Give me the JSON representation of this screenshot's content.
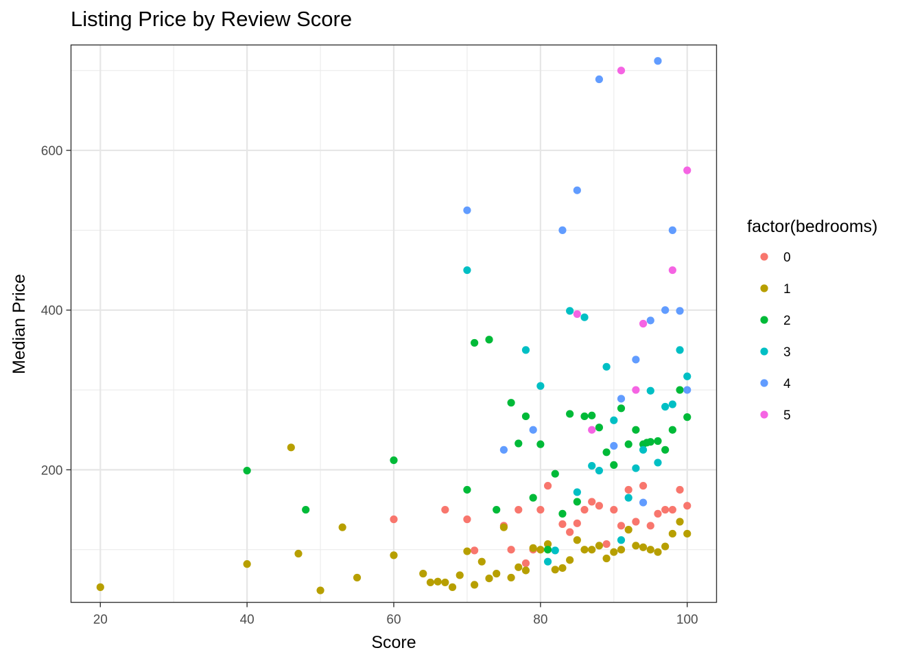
{
  "chart_data": {
    "type": "scatter",
    "title": "Listing Price by Review Score",
    "xlabel": "Score",
    "ylabel": "Median Price",
    "xlim": [
      16,
      104
    ],
    "ylim": [
      34,
      732
    ],
    "x_ticks": [
      20,
      40,
      60,
      80,
      100
    ],
    "x_minor": [
      30,
      50,
      70,
      90
    ],
    "y_ticks": [
      200,
      400,
      600
    ],
    "y_minor": [
      100,
      300,
      500,
      700
    ],
    "grid": true,
    "legend": {
      "title": "factor(bedrooms)",
      "placement": "right"
    },
    "series": [
      {
        "name": "0",
        "color": "#F8766D",
        "points": [
          [
            60,
            138
          ],
          [
            67,
            150
          ],
          [
            70,
            138
          ],
          [
            71,
            99
          ],
          [
            75,
            130
          ],
          [
            76,
            100
          ],
          [
            77,
            150
          ],
          [
            78,
            83
          ],
          [
            79,
            100
          ],
          [
            80,
            150
          ],
          [
            81,
            180
          ],
          [
            83,
            132
          ],
          [
            84,
            122
          ],
          [
            85,
            133
          ],
          [
            86,
            150
          ],
          [
            87,
            160
          ],
          [
            88,
            155
          ],
          [
            89,
            107
          ],
          [
            90,
            150
          ],
          [
            91,
            130
          ],
          [
            92,
            175
          ],
          [
            93,
            135
          ],
          [
            94,
            180
          ],
          [
            95,
            130
          ],
          [
            96,
            145
          ],
          [
            97,
            150
          ],
          [
            98,
            150
          ],
          [
            99,
            175
          ],
          [
            100,
            155
          ]
        ]
      },
      {
        "name": "1",
        "color": "#B79F00",
        "points": [
          [
            20,
            53
          ],
          [
            40,
            82
          ],
          [
            46,
            228
          ],
          [
            47,
            95
          ],
          [
            50,
            49
          ],
          [
            53,
            128
          ],
          [
            55,
            65
          ],
          [
            60,
            93
          ],
          [
            64,
            70
          ],
          [
            65,
            59
          ],
          [
            66,
            60
          ],
          [
            67,
            59
          ],
          [
            68,
            53
          ],
          [
            69,
            68
          ],
          [
            70,
            98
          ],
          [
            71,
            56
          ],
          [
            72,
            85
          ],
          [
            73,
            64
          ],
          [
            74,
            70
          ],
          [
            75,
            128
          ],
          [
            76,
            65
          ],
          [
            77,
            78
          ],
          [
            78,
            74
          ],
          [
            79,
            102
          ],
          [
            80,
            100
          ],
          [
            81,
            107
          ],
          [
            82,
            75
          ],
          [
            83,
            77
          ],
          [
            84,
            87
          ],
          [
            85,
            112
          ],
          [
            86,
            100
          ],
          [
            87,
            100
          ],
          [
            88,
            105
          ],
          [
            89,
            89
          ],
          [
            90,
            97
          ],
          [
            91,
            100
          ],
          [
            92,
            125
          ],
          [
            93,
            105
          ],
          [
            94,
            103
          ],
          [
            95,
            100
          ],
          [
            96,
            97
          ],
          [
            97,
            104
          ],
          [
            98,
            120
          ],
          [
            99,
            135
          ],
          [
            100,
            120
          ]
        ]
      },
      {
        "name": "2",
        "color": "#00BA38",
        "points": [
          [
            40,
            199
          ],
          [
            48,
            150
          ],
          [
            60,
            212
          ],
          [
            70,
            175
          ],
          [
            71,
            359
          ],
          [
            73,
            363
          ],
          [
            74,
            150
          ],
          [
            76,
            284
          ],
          [
            77,
            233
          ],
          [
            78,
            267
          ],
          [
            79,
            165
          ],
          [
            80,
            232
          ],
          [
            81,
            100
          ],
          [
            82,
            195
          ],
          [
            83,
            145
          ],
          [
            84,
            270
          ],
          [
            85,
            160
          ],
          [
            86,
            267
          ],
          [
            87,
            268
          ],
          [
            88,
            253
          ],
          [
            89,
            222
          ],
          [
            90,
            206
          ],
          [
            91,
            277
          ],
          [
            92,
            232
          ],
          [
            93,
            250
          ],
          [
            94,
            232
          ],
          [
            94.5,
            234
          ],
          [
            95,
            235
          ],
          [
            96,
            236
          ],
          [
            97,
            225
          ],
          [
            98,
            250
          ],
          [
            99,
            300
          ],
          [
            100,
            266
          ]
        ]
      },
      {
        "name": "3",
        "color": "#00BFC4",
        "points": [
          [
            70,
            450
          ],
          [
            78,
            350
          ],
          [
            80,
            305
          ],
          [
            81,
            85
          ],
          [
            82,
            99
          ],
          [
            84,
            399
          ],
          [
            85,
            172
          ],
          [
            86,
            391
          ],
          [
            87,
            205
          ],
          [
            88,
            199
          ],
          [
            89,
            329
          ],
          [
            90,
            262
          ],
          [
            91,
            112
          ],
          [
            92,
            165
          ],
          [
            93,
            202
          ],
          [
            94,
            225
          ],
          [
            95,
            299
          ],
          [
            96,
            209
          ],
          [
            97,
            279
          ],
          [
            98,
            282
          ],
          [
            99,
            350
          ],
          [
            100,
            317
          ]
        ]
      },
      {
        "name": "4",
        "color": "#619CFF",
        "points": [
          [
            70,
            525
          ],
          [
            75,
            225
          ],
          [
            79,
            250
          ],
          [
            83,
            500
          ],
          [
            85,
            550
          ],
          [
            88,
            689
          ],
          [
            90,
            230
          ],
          [
            91,
            289
          ],
          [
            93,
            338
          ],
          [
            94,
            159
          ],
          [
            95,
            387
          ],
          [
            96,
            712
          ],
          [
            97,
            400
          ],
          [
            98,
            500
          ],
          [
            99,
            399
          ],
          [
            100,
            300
          ]
        ]
      },
      {
        "name": "5",
        "color": "#F564E3",
        "points": [
          [
            85,
            395
          ],
          [
            87,
            250
          ],
          [
            91,
            700
          ],
          [
            93,
            300
          ],
          [
            94,
            383
          ],
          [
            98,
            450
          ],
          [
            100,
            575
          ]
        ]
      }
    ]
  }
}
